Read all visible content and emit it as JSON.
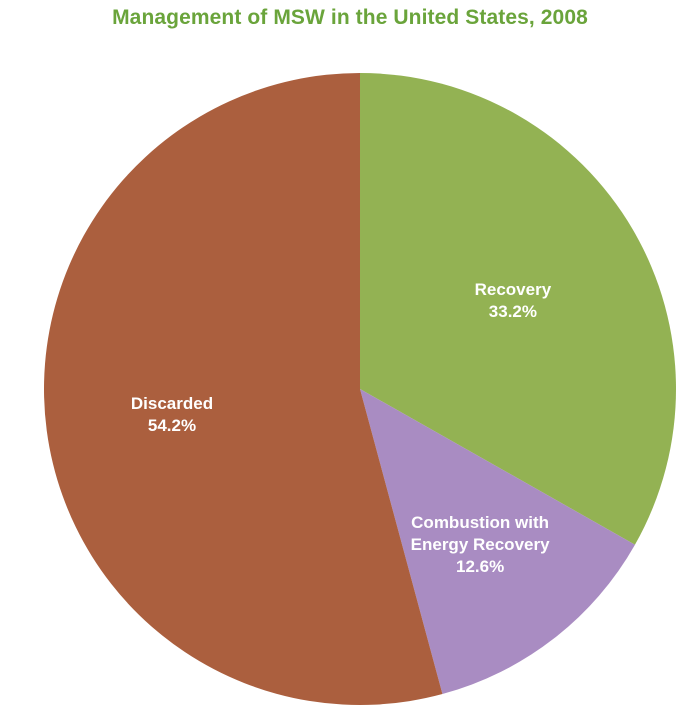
{
  "chart_data": {
    "type": "pie",
    "title": "Management of MSW in the United States, 2008",
    "slices": [
      {
        "label": "Recovery",
        "value": 33.2,
        "display": "33.2%",
        "color": "#93b253"
      },
      {
        "label": "Combustion with Energy Recovery",
        "label_lines": [
          "Combustion with",
          "Energy Recovery"
        ],
        "value": 12.6,
        "display": "12.6%",
        "color": "#a98cc2"
      },
      {
        "label": "Discarded",
        "value": 54.2,
        "display": "54.2%",
        "color": "#ab5f3e"
      }
    ],
    "start": "top",
    "direction": "clockwise",
    "legend": "none"
  }
}
